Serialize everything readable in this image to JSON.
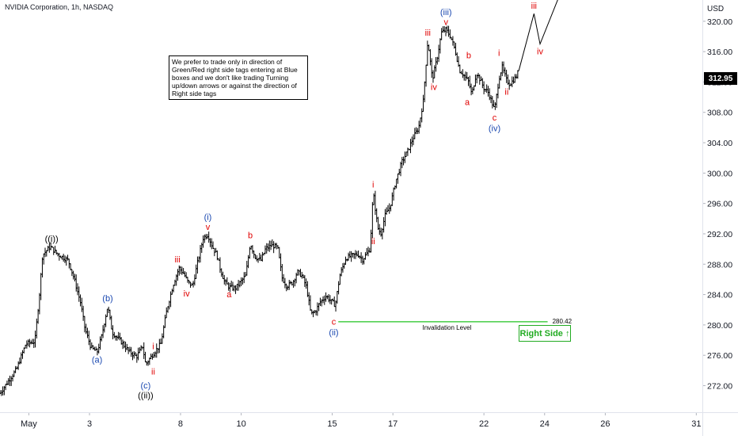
{
  "header": {
    "title": "NVIDIA Corporation, 1h, NASDAQ",
    "currency": "USD"
  },
  "note_text": "We prefer to trade only in direction of Green/Red right side tags entering at Blue boxes and we don't like trading Turning up/down arrows or against the direction of Right side tags",
  "right_side_label": "Right Side ↑",
  "current_price": "312.95",
  "colors": {
    "red": "#e00000",
    "blue": "#1a48b0",
    "black": "#000000",
    "green": "#22c322",
    "axis_text": "#131722"
  },
  "chart_data": {
    "type": "ohlc",
    "y_axis": {
      "ticks": [
        "272.00",
        "276.00",
        "280.00",
        "284.00",
        "288.00",
        "292.00",
        "296.00",
        "300.00",
        "304.00",
        "308.00",
        "312.00",
        "316.00",
        "320.00"
      ],
      "ylim": [
        268.5,
        322.8
      ]
    },
    "x_axis": {
      "ticks": [
        {
          "label": "May",
          "t": 0
        },
        {
          "label": "3",
          "t": 2
        },
        {
          "label": "8",
          "t": 5
        },
        {
          "label": "10",
          "t": 7
        },
        {
          "label": "15",
          "t": 10
        },
        {
          "label": "17",
          "t": 12
        },
        {
          "label": "22",
          "t": 15
        },
        {
          "label": "24",
          "t": 17
        },
        {
          "label": "26",
          "t": 19
        },
        {
          "label": "31",
          "t": 22
        }
      ],
      "xlim": [
        -0.95,
        22.2
      ]
    },
    "anchors": [
      [
        -0.95,
        271.0
      ],
      [
        -0.4,
        274.2
      ],
      [
        -0.1,
        277.5
      ],
      [
        0.2,
        277.8
      ],
      [
        0.35,
        284.0
      ],
      [
        0.45,
        289.2
      ],
      [
        0.7,
        290.3
      ],
      [
        0.95,
        289.3
      ],
      [
        1.3,
        288.5
      ],
      [
        1.5,
        286.0
      ],
      [
        1.7,
        283.0
      ],
      [
        1.85,
        279.5
      ],
      [
        2.05,
        277.0
      ],
      [
        2.25,
        276.4
      ],
      [
        2.4,
        278.5
      ],
      [
        2.6,
        282.5
      ],
      [
        2.75,
        279.0
      ],
      [
        3.0,
        278.0
      ],
      [
        3.3,
        276.5
      ],
      [
        3.55,
        275.8
      ],
      [
        3.75,
        277.2
      ],
      [
        3.85,
        274.8
      ],
      [
        4.1,
        276.2
      ],
      [
        4.35,
        277.5
      ],
      [
        4.55,
        282.0
      ],
      [
        4.75,
        285.2
      ],
      [
        4.95,
        287.5
      ],
      [
        5.1,
        286.8
      ],
      [
        5.25,
        285.6
      ],
      [
        5.4,
        285.1
      ],
      [
        5.55,
        288.0
      ],
      [
        5.75,
        291.5
      ],
      [
        5.9,
        291.9
      ],
      [
        6.05,
        290.3
      ],
      [
        6.2,
        289.2
      ],
      [
        6.3,
        287.5
      ],
      [
        6.45,
        285.7
      ],
      [
        6.6,
        285.0
      ],
      [
        6.8,
        284.8
      ],
      [
        6.95,
        285.5
      ],
      [
        7.15,
        286.5
      ],
      [
        7.3,
        290.8
      ],
      [
        7.45,
        289.0
      ],
      [
        7.65,
        288.5
      ],
      [
        7.8,
        290.0
      ],
      [
        8.0,
        290.5
      ],
      [
        8.2,
        290.2
      ],
      [
        8.35,
        286.2
      ],
      [
        8.5,
        285.1
      ],
      [
        8.7,
        285.6
      ],
      [
        8.85,
        287.0
      ],
      [
        9.0,
        286.5
      ],
      [
        9.15,
        285.0
      ],
      [
        9.3,
        281.4
      ],
      [
        9.45,
        281.8
      ],
      [
        9.6,
        283.0
      ],
      [
        9.8,
        283.8
      ],
      [
        9.95,
        283.2
      ],
      [
        10.1,
        282.6
      ],
      [
        10.25,
        286.5
      ],
      [
        10.45,
        288.8
      ],
      [
        10.7,
        289.2
      ],
      [
        10.85,
        289.3
      ],
      [
        11.0,
        288.6
      ],
      [
        11.25,
        290.0
      ],
      [
        11.35,
        297.5
      ],
      [
        11.5,
        292.8
      ],
      [
        11.6,
        292.0
      ],
      [
        11.75,
        294.5
      ],
      [
        11.9,
        295.5
      ],
      [
        12.1,
        299.0
      ],
      [
        12.3,
        301.5
      ],
      [
        12.5,
        303.0
      ],
      [
        12.65,
        304.5
      ],
      [
        12.85,
        306.0
      ],
      [
        13.0,
        309.5
      ],
      [
        13.15,
        317.5
      ],
      [
        13.3,
        312.3
      ],
      [
        13.45,
        315.0
      ],
      [
        13.6,
        318.5
      ],
      [
        13.75,
        318.9
      ],
      [
        13.9,
        318.0
      ],
      [
        14.05,
        316.2
      ],
      [
        14.2,
        313.5
      ],
      [
        14.3,
        313.1
      ],
      [
        14.5,
        312.0
      ],
      [
        14.6,
        310.3
      ],
      [
        14.75,
        313.2
      ],
      [
        14.85,
        312.5
      ],
      [
        15.0,
        311.2
      ],
      [
        15.15,
        310.6
      ],
      [
        15.35,
        308.3
      ],
      [
        15.5,
        312.5
      ],
      [
        15.6,
        314.0
      ],
      [
        15.75,
        312.2
      ],
      [
        15.85,
        311.7
      ],
      [
        16.05,
        312.6
      ],
      [
        16.15,
        313.5
      ]
    ],
    "projection": [
      [
        16.15,
        313.5
      ],
      [
        16.65,
        321.0
      ],
      [
        16.85,
        317.0
      ],
      [
        17.45,
        323.0
      ]
    ],
    "invalidation_level": {
      "value": 280.42,
      "label": "280.42",
      "text": "Invalidation Level",
      "from": 10.2,
      "to": 17.1
    },
    "wave_labels": [
      {
        "text": "((i))",
        "t": 0.75,
        "p": 290.3,
        "pos": "above",
        "color": "black"
      },
      {
        "text": "(a)",
        "t": 2.25,
        "p": 276.4,
        "pos": "below",
        "color": "blue"
      },
      {
        "text": "(b)",
        "t": 2.6,
        "p": 282.5,
        "pos": "above",
        "color": "blue"
      },
      {
        "text": "i",
        "t": 4.1,
        "p": 276.2,
        "pos": "above",
        "color": "red"
      },
      {
        "text": "ii",
        "t": 4.1,
        "p": 274.8,
        "pos": "below",
        "color": "red"
      },
      {
        "text": "(c)",
        "t": 3.85,
        "p": 273.0,
        "pos": "below",
        "color": "blue"
      },
      {
        "text": "((ii))",
        "t": 3.85,
        "p": 271.7,
        "pos": "below",
        "color": "black"
      },
      {
        "text": "iii",
        "t": 4.9,
        "p": 287.6,
        "pos": "above",
        "color": "red"
      },
      {
        "text": "iv",
        "t": 5.2,
        "p": 285.1,
        "pos": "below",
        "color": "red"
      },
      {
        "text": "v",
        "t": 5.9,
        "p": 291.9,
        "pos": "above",
        "color": "red"
      },
      {
        "text": "(i)",
        "t": 5.9,
        "p": 293.2,
        "pos": "above",
        "color": "blue"
      },
      {
        "text": "a",
        "t": 6.6,
        "p": 285.0,
        "pos": "below",
        "color": "red"
      },
      {
        "text": "b",
        "t": 7.3,
        "p": 290.8,
        "pos": "above",
        "color": "red"
      },
      {
        "text": "c",
        "t": 10.05,
        "p": 281.4,
        "pos": "below",
        "color": "red"
      },
      {
        "text": "(ii)",
        "t": 10.05,
        "p": 280.0,
        "pos": "below",
        "color": "blue"
      },
      {
        "text": "i",
        "t": 11.35,
        "p": 297.5,
        "pos": "above",
        "color": "red"
      },
      {
        "text": "ii",
        "t": 11.35,
        "p": 292.0,
        "pos": "below",
        "color": "red"
      },
      {
        "text": "iii",
        "t": 13.15,
        "p": 317.5,
        "pos": "above",
        "color": "red"
      },
      {
        "text": "iv",
        "t": 13.35,
        "p": 312.3,
        "pos": "below",
        "color": "red"
      },
      {
        "text": "v",
        "t": 13.75,
        "p": 318.9,
        "pos": "above",
        "color": "red"
      },
      {
        "text": "(iii)",
        "t": 13.75,
        "p": 320.2,
        "pos": "above",
        "color": "blue"
      },
      {
        "text": "b",
        "t": 14.5,
        "p": 314.5,
        "pos": "above",
        "color": "red"
      },
      {
        "text": "a",
        "t": 14.45,
        "p": 310.3,
        "pos": "below",
        "color": "red"
      },
      {
        "text": "i",
        "t": 15.5,
        "p": 314.8,
        "pos": "above",
        "color": "red"
      },
      {
        "text": "c",
        "t": 15.35,
        "p": 308.3,
        "pos": "below",
        "color": "red"
      },
      {
        "text": "(iv)",
        "t": 15.35,
        "p": 306.9,
        "pos": "below",
        "color": "blue"
      },
      {
        "text": "ii",
        "t": 15.75,
        "p": 311.7,
        "pos": "below",
        "color": "red"
      },
      {
        "text": "iii",
        "t": 16.65,
        "p": 321.0,
        "pos": "above",
        "color": "red"
      },
      {
        "text": "iv",
        "t": 16.85,
        "p": 317.0,
        "pos": "below",
        "color": "red"
      }
    ]
  }
}
